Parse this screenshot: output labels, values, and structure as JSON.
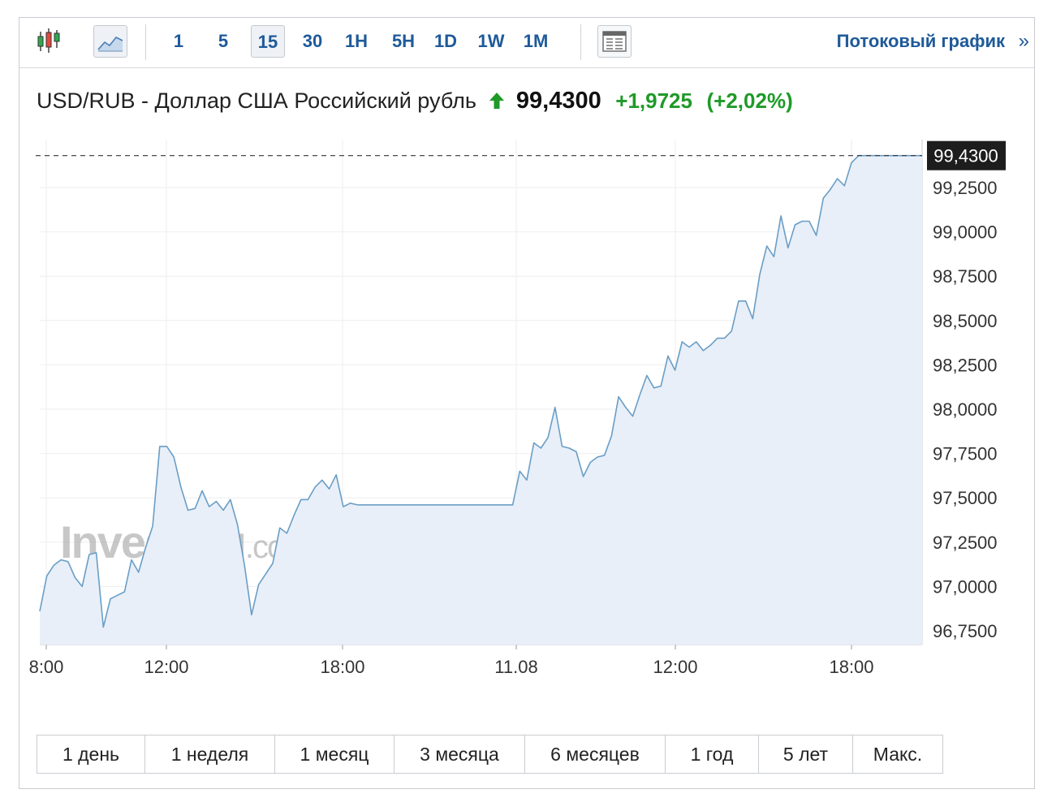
{
  "toolbar": {
    "chart_types": [
      {
        "name": "candlestick-icon"
      },
      {
        "name": "area-chart-icon",
        "active": true
      }
    ],
    "timeframes": [
      {
        "label": "1",
        "active": false
      },
      {
        "label": "5",
        "active": false
      },
      {
        "label": "15",
        "active": true
      },
      {
        "label": "30",
        "active": false
      },
      {
        "label": "1H",
        "active": false
      },
      {
        "label": "5H",
        "active": false
      },
      {
        "label": "1D",
        "active": false
      },
      {
        "label": "1W",
        "active": false
      },
      {
        "label": "1M",
        "active": false
      }
    ],
    "table_icon": "table-view-icon",
    "streaming_link": "Потоковый график",
    "streaming_arrow": "»"
  },
  "header": {
    "pair": "USD/RUB - Доллар США Российский рубль",
    "price": "99,4300",
    "change": "+1,9725",
    "change_pct": "(+2,02%)",
    "direction": "up",
    "up_color": "#1f9a28"
  },
  "watermark": {
    "brand": "Investing",
    "suffix": ".com"
  },
  "colors": {
    "line": "#6a9ec6",
    "fill": "#e8eff8",
    "grid": "#eeeeee",
    "price_tag_bg": "#1d1d1d"
  },
  "chart_data": {
    "type": "area",
    "title": "USD/RUB - Доллар США Российский рубль",
    "x_tick_labels": [
      "8:00",
      "12:00",
      "18:00",
      "11.08",
      "12:00",
      "18:00"
    ],
    "y_tick_labels": [
      "99,2500",
      "99,0000",
      "98,7500",
      "98,5000",
      "98,2500",
      "98,0000",
      "97,7500",
      "97,5000",
      "97,2500",
      "97,0000",
      "96,7500"
    ],
    "y_ticks": [
      99.25,
      99.0,
      98.75,
      98.5,
      98.25,
      98.0,
      97.75,
      97.5,
      97.25,
      97.0,
      96.75
    ],
    "ylim": [
      96.67,
      99.55
    ],
    "last_value": 99.43,
    "last_value_label": "99,4300",
    "grid": true,
    "series": [
      {
        "values": [
          96.86,
          97.06,
          97.12,
          97.15,
          97.14,
          97.05,
          97.0,
          97.18,
          97.19,
          96.77,
          96.93,
          96.95,
          96.97,
          97.15,
          97.08,
          97.22,
          97.34,
          97.79,
          97.79,
          97.73,
          97.56,
          97.43,
          97.44,
          97.54,
          97.45,
          97.48,
          97.43,
          97.49,
          97.35,
          97.12,
          96.84,
          97.01,
          97.07,
          97.13,
          97.33,
          97.3,
          97.4,
          97.49,
          97.49,
          97.56,
          97.6,
          97.55,
          97.63,
          97.45,
          97.47,
          97.46,
          97.46,
          97.46,
          97.46,
          97.46,
          97.46,
          97.46,
          97.46,
          97.46,
          97.46,
          97.46,
          97.46,
          97.46,
          97.46,
          97.46,
          97.46,
          97.46,
          97.46,
          97.46,
          97.46,
          97.46,
          97.46,
          97.46,
          97.65,
          97.6,
          97.81,
          97.78,
          97.84,
          98.01,
          97.79,
          97.78,
          97.76,
          97.62,
          97.7,
          97.73,
          97.74,
          97.85,
          98.07,
          98.01,
          97.96,
          98.08,
          98.19,
          98.12,
          98.13,
          98.3,
          98.22,
          98.38,
          98.35,
          98.38,
          98.33,
          98.36,
          98.4,
          98.4,
          98.44,
          98.61,
          98.61,
          98.51,
          98.76,
          98.92,
          98.86,
          99.09,
          98.91,
          99.04,
          99.06,
          99.06,
          98.98,
          99.19,
          99.24,
          99.3,
          99.26,
          99.39,
          99.43,
          99.43,
          99.43,
          99.43,
          99.43,
          99.43,
          99.43,
          99.43,
          99.43,
          99.43
        ]
      }
    ]
  },
  "ranges": [
    {
      "label": "1 день"
    },
    {
      "label": "1 неделя"
    },
    {
      "label": "1 месяц"
    },
    {
      "label": "3 месяца"
    },
    {
      "label": "6 месяцев"
    },
    {
      "label": "1 год"
    },
    {
      "label": "5 лет"
    },
    {
      "label": "Макс."
    }
  ]
}
